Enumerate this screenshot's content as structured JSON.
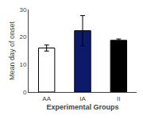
{
  "chart_data": {
    "type": "bar",
    "categories": [
      "AA",
      "IA",
      "II"
    ],
    "values": [
      16.0,
      22.3,
      18.8
    ],
    "errors": [
      1.1,
      5.5,
      0.5
    ],
    "colors": [
      "#ffffff",
      "#0d1a6b",
      "#000000"
    ],
    "xlabel": "Experimental Groups",
    "ylabel": "Mean day of onset",
    "ylim": [
      0,
      30
    ],
    "yticks": [
      0,
      10,
      20,
      30
    ],
    "grid": false
  }
}
